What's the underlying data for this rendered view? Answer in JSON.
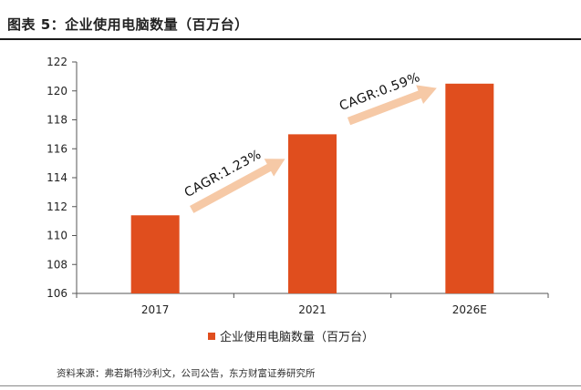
{
  "figure": {
    "title": "图表 5：企业使用电脑数量（百万台）",
    "source": "资料来源：弗若斯特沙利文，公司公告，东方财富证券研究所"
  },
  "colors": {
    "bar": "#e04e1e",
    "arrow": "#f6c9a6",
    "axis": "#555555"
  },
  "chart_data": {
    "type": "bar",
    "categories": [
      "2017",
      "2021",
      "2026E"
    ],
    "series": [
      {
        "name": "企业使用电脑数量（百万台）",
        "values": [
          111.4,
          117.0,
          120.5
        ]
      }
    ],
    "ylim": [
      106,
      122
    ],
    "yticks": [
      106,
      108,
      110,
      112,
      114,
      116,
      118,
      120,
      122
    ],
    "legend": "bottom-center",
    "grid": false,
    "annotations": [
      {
        "text": "CAGR:1.23%",
        "from": "2017",
        "to": "2021"
      },
      {
        "text": "CAGR:0.59%",
        "from": "2021",
        "to": "2026E"
      }
    ]
  }
}
